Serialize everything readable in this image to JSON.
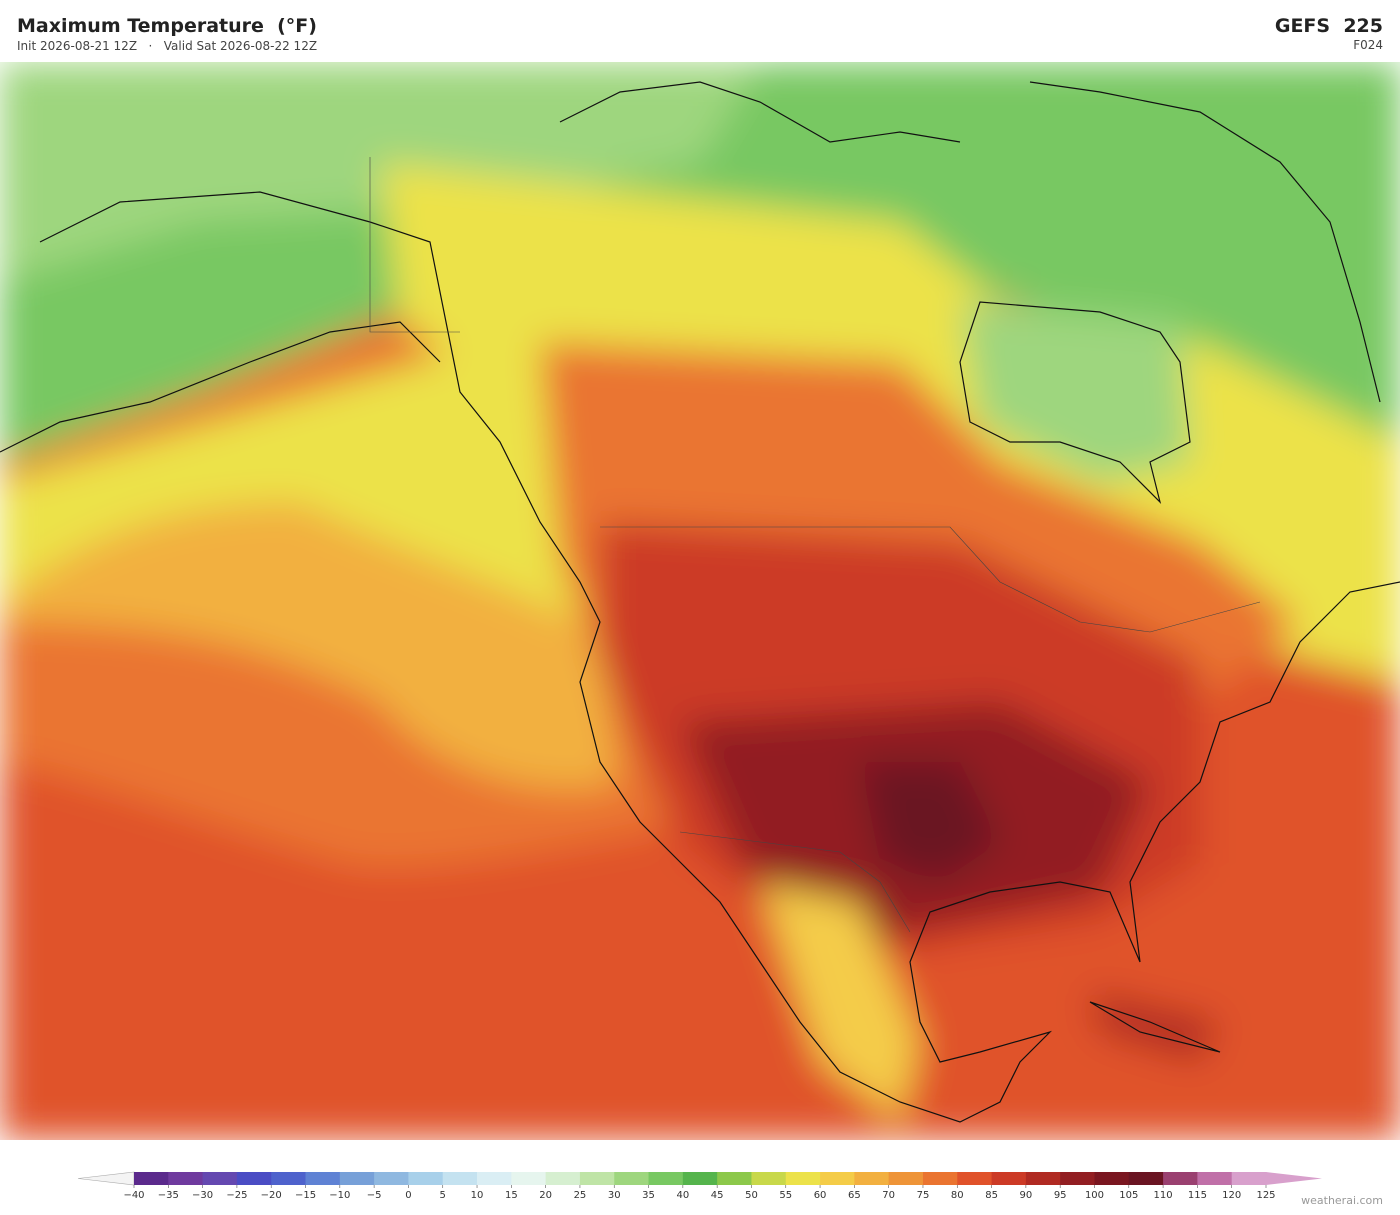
{
  "header": {
    "title": "Maximum Temperature  (°F)",
    "init": "Init 2026-08-21 12Z",
    "separator": "·",
    "valid": "Valid Sat 2026-08-22 12Z",
    "model": "GEFS  225",
    "forecast_hour": "F024"
  },
  "colorbar": {
    "ticks": [
      {
        "value": -40,
        "label": "−40"
      },
      {
        "value": -35,
        "label": "−35"
      },
      {
        "value": -30,
        "label": "−30"
      },
      {
        "value": -25,
        "label": "−25"
      },
      {
        "value": -20,
        "label": "−20"
      },
      {
        "value": -15,
        "label": "−15"
      },
      {
        "value": -10,
        "label": "−10"
      },
      {
        "value": -5,
        "label": "−5"
      },
      0,
      5,
      10,
      15,
      20,
      25,
      30,
      35,
      40,
      45,
      50,
      55,
      60,
      65,
      70,
      75,
      80,
      85,
      90,
      95,
      100,
      105,
      110,
      115,
      120,
      125
    ],
    "colors": [
      "#5b2a8c",
      "#6f3a9e",
      "#6448b0",
      "#4a4cc4",
      "#4e62cc",
      "#5f82d4",
      "#77a0d8",
      "#8fb8e0",
      "#a8d0ea",
      "#c4e2f0",
      "#daeef4",
      "#e6f5ee",
      "#d6efd0",
      "#bfe4a6",
      "#9ed67e",
      "#78c862",
      "#55b44c",
      "#8cc84a",
      "#c8d84a",
      "#ece24a",
      "#f4cc48",
      "#f2b040",
      "#ee9438",
      "#ea7430",
      "#e0522a",
      "#cc3a26",
      "#b02a22",
      "#921e22",
      "#7a1620",
      "#6a1422",
      "#9a4070",
      "#c070a8",
      "#d8a0cc"
    ],
    "under_color": "#f4f4f4",
    "over_color": "#d8a0cc"
  },
  "footer": {
    "credit": "weatherai.com"
  }
}
